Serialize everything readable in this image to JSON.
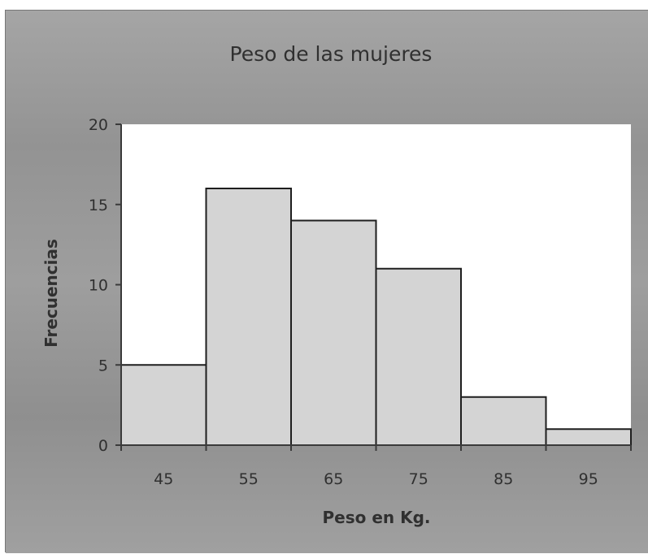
{
  "chart_data": {
    "type": "bar",
    "title": "Peso de las mujeres",
    "xlabel": "Peso en Kg.",
    "ylabel": "Frecuencias",
    "categories": [
      "45",
      "55",
      "65",
      "75",
      "85",
      "95"
    ],
    "values": [
      5,
      16,
      14,
      11,
      3,
      1
    ],
    "ylim": [
      0,
      20
    ],
    "yticks": [
      0,
      5,
      10,
      15,
      20
    ],
    "grid": false,
    "legend": "none",
    "colors": {
      "background": "#9a9a9a",
      "plot_area": "#ffffff",
      "bar_fill": "#d4d4d4",
      "bar_stroke": "#1e1e1e",
      "text": "#303030"
    }
  }
}
